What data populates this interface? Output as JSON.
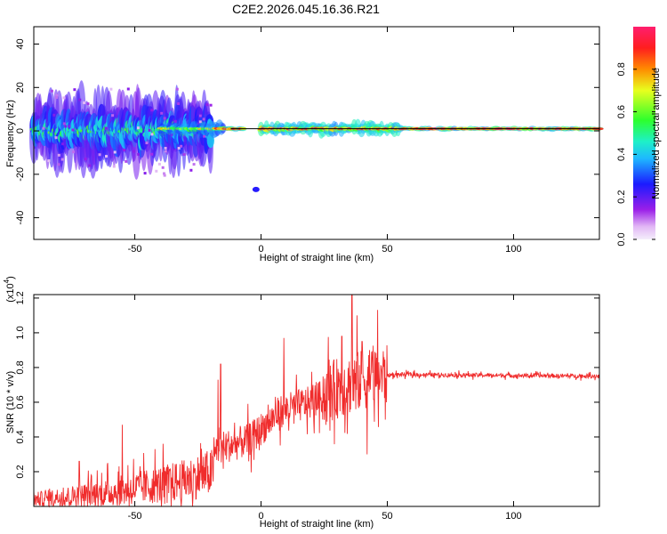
{
  "title": "C2E2.2026.045.16.36.R21",
  "chart_data": [
    {
      "type": "heatmap",
      "xlabel": "Height of straight line (km)",
      "ylabel": "Frequency (Hz)",
      "xlim": [
        -90,
        134
      ],
      "ylim": [
        -50,
        48
      ],
      "xticks": [
        -50,
        0,
        50,
        100
      ],
      "yticks": [
        -40,
        -20,
        0,
        20,
        40
      ],
      "colorbar": {
        "label": "Normalized spectral amplitude",
        "range": [
          0,
          1
        ],
        "ticks": [
          0.0,
          0.2,
          0.4,
          0.6,
          0.8
        ],
        "tick_labels": [
          "0.0",
          "0.2",
          "0.4",
          "0.6",
          "0.8"
        ]
      },
      "features": [
        {
          "name": "noisy spread band",
          "x_range": [
            -90,
            -20
          ],
          "freq_center": 0,
          "freq_spread": 12,
          "max_amplitude": 0.55
        },
        {
          "name": "transition band",
          "x_range": [
            -40,
            -15
          ],
          "freq_center": 1,
          "freq_spread": 3,
          "max_amplitude": 0.7
        },
        {
          "name": "strong peak",
          "x_range": [
            -17,
            -7
          ],
          "freq_center": 1,
          "freq_spread": 1,
          "max_amplitude": 0.95
        },
        {
          "name": "mid band",
          "x_range": [
            0,
            55
          ],
          "freq_center": 1,
          "freq_spread": 3,
          "max_amplitude": 0.9
        },
        {
          "name": "steady line",
          "x_range": [
            55,
            134
          ],
          "freq_center": 1,
          "freq_spread": 1,
          "max_amplitude": 0.95
        },
        {
          "name": "isolated blip",
          "x": -2,
          "freq": -27,
          "max_amplitude": 0.25
        }
      ]
    },
    {
      "type": "line",
      "xlabel": "Height of straight line (km)",
      "ylabel": "SNR (10 * v/v)",
      "ylabel_extra": "(x10",
      "ylabel_exp": "4",
      "xlim": [
        -90,
        134
      ],
      "ylim": [
        0,
        1.22
      ],
      "xticks": [
        -50,
        0,
        50,
        100
      ],
      "yticks": [
        0.2,
        0.4,
        0.6,
        0.8,
        1.0,
        1.2
      ],
      "ytick_labels": [
        "0.2",
        "0.4",
        "0.6",
        "0.8",
        "1.0",
        "1.2"
      ],
      "series": [
        {
          "name": "SNR",
          "color": "#f02c2c",
          "baseline": [
            [
              -90,
              0.04
            ],
            [
              -60,
              0.08
            ],
            [
              -30,
              0.15
            ],
            [
              -19,
              0.2
            ],
            [
              -18,
              0.33
            ],
            [
              -5,
              0.38
            ],
            [
              8,
              0.55
            ],
            [
              20,
              0.6
            ],
            [
              30,
              0.68
            ],
            [
              45,
              0.75
            ],
            [
              55,
              0.76
            ],
            [
              134,
              0.75
            ]
          ],
          "peaks": [
            {
              "x": 36,
              "y": 1.22
            },
            {
              "x": 38,
              "y": 1.1
            },
            {
              "x": 32,
              "y": 0.98
            },
            {
              "x": 9,
              "y": 0.97
            },
            {
              "x": 40,
              "y": 0.95
            },
            {
              "x": -16,
              "y": 0.82
            },
            {
              "x": -17,
              "y": 0.73
            },
            {
              "x": 43,
              "y": 0.9
            },
            {
              "x": -55,
              "y": 0.47
            },
            {
              "x": -72,
              "y": 0.26
            },
            {
              "x": 42,
              "y": 0.3
            }
          ]
        }
      ]
    }
  ]
}
